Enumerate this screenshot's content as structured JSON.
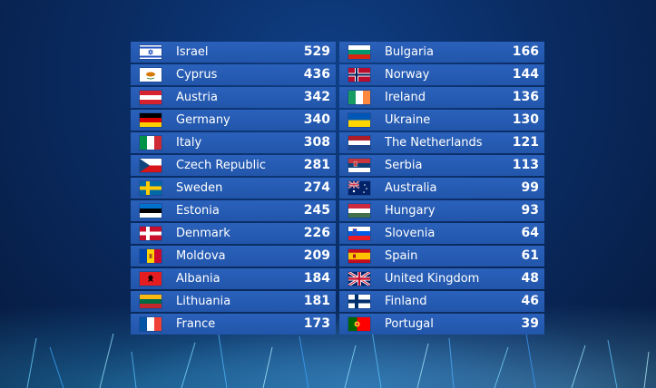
{
  "scoreboard": {
    "left": [
      {
        "country": "Israel",
        "points": "529",
        "flag": "israel-flag-icon"
      },
      {
        "country": "Cyprus",
        "points": "436",
        "flag": "cyprus-flag-icon"
      },
      {
        "country": "Austria",
        "points": "342",
        "flag": "austria-flag-icon"
      },
      {
        "country": "Germany",
        "points": "340",
        "flag": "germany-flag-icon"
      },
      {
        "country": "Italy",
        "points": "308",
        "flag": "italy-flag-icon"
      },
      {
        "country": "Czech Republic",
        "points": "281",
        "flag": "czech-republic-flag-icon"
      },
      {
        "country": "Sweden",
        "points": "274",
        "flag": "sweden-flag-icon"
      },
      {
        "country": "Estonia",
        "points": "245",
        "flag": "estonia-flag-icon"
      },
      {
        "country": "Denmark",
        "points": "226",
        "flag": "denmark-flag-icon"
      },
      {
        "country": "Moldova",
        "points": "209",
        "flag": "moldova-flag-icon"
      },
      {
        "country": "Albania",
        "points": "184",
        "flag": "albania-flag-icon"
      },
      {
        "country": "Lithuania",
        "points": "181",
        "flag": "lithuania-flag-icon"
      },
      {
        "country": "France",
        "points": "173",
        "flag": "france-flag-icon"
      }
    ],
    "right": [
      {
        "country": "Bulgaria",
        "points": "166",
        "flag": "bulgaria-flag-icon"
      },
      {
        "country": "Norway",
        "points": "144",
        "flag": "norway-flag-icon"
      },
      {
        "country": "Ireland",
        "points": "136",
        "flag": "ireland-flag-icon"
      },
      {
        "country": "Ukraine",
        "points": "130",
        "flag": "ukraine-flag-icon"
      },
      {
        "country": "The Netherlands",
        "points": "121",
        "flag": "netherlands-flag-icon"
      },
      {
        "country": "Serbia",
        "points": "113",
        "flag": "serbia-flag-icon"
      },
      {
        "country": "Australia",
        "points": "99",
        "flag": "australia-flag-icon"
      },
      {
        "country": "Hungary",
        "points": "93",
        "flag": "hungary-flag-icon"
      },
      {
        "country": "Slovenia",
        "points": "64",
        "flag": "slovenia-flag-icon"
      },
      {
        "country": "Spain",
        "points": "61",
        "flag": "spain-flag-icon"
      },
      {
        "country": "United Kingdom",
        "points": "48",
        "flag": "united-kingdom-flag-icon"
      },
      {
        "country": "Finland",
        "points": "46",
        "flag": "finland-flag-icon"
      },
      {
        "country": "Portugal",
        "points": "39",
        "flag": "portugal-flag-icon"
      }
    ]
  },
  "colors": {
    "row_background": "#2559b0",
    "page_background": "#0a2c63",
    "text": "#ffffff"
  }
}
